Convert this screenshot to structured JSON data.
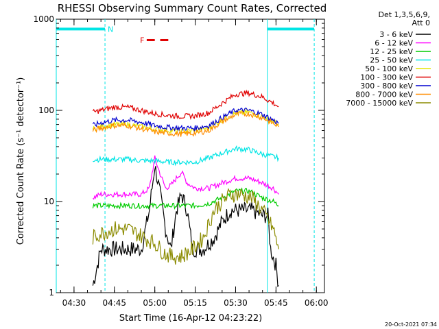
{
  "chart_data": {
    "type": "line",
    "title": "RHESSI Observing Summary Count Rates, Corrected",
    "xlabel": "Start Time (16-Apr-12 04:23:22)",
    "ylabel": "Corrected Count Rate (s⁻¹ detector⁻¹)",
    "y_scale": "log",
    "ylim": [
      1,
      1000
    ],
    "xlim_minutes_after_0400": [
      23.4,
      123.0
    ],
    "x_ticks": [
      {
        "label": "04:30",
        "m": 30
      },
      {
        "label": "04:45",
        "m": 45
      },
      {
        "label": "05:00",
        "m": 60
      },
      {
        "label": "05:15",
        "m": 75
      },
      {
        "label": "05:30",
        "m": 90
      },
      {
        "label": "05:45",
        "m": 105
      },
      {
        "label": "06:00",
        "m": 120
      }
    ],
    "y_ticks": [
      {
        "label": "1",
        "v": 1
      },
      {
        "label": "10",
        "v": 10
      },
      {
        "label": "100",
        "v": 100
      },
      {
        "label": "1000",
        "v": 1000
      }
    ],
    "legend_header": [
      "Det 1,3,5,6,9,",
      "Att 0"
    ],
    "legend_position": "right",
    "series": [
      {
        "name": "3 - 6 keV",
        "color": "#000000",
        "points": [
          [
            37,
            1.2
          ],
          [
            40,
            3
          ],
          [
            45,
            3
          ],
          [
            50,
            3
          ],
          [
            55,
            3
          ],
          [
            58,
            8
          ],
          [
            60,
            25
          ],
          [
            62,
            12
          ],
          [
            64,
            5
          ],
          [
            66,
            3
          ],
          [
            68,
            8
          ],
          [
            70,
            12
          ],
          [
            72,
            8
          ],
          [
            74,
            3
          ],
          [
            78,
            3
          ],
          [
            82,
            4
          ],
          [
            85,
            6
          ],
          [
            88,
            8
          ],
          [
            92,
            8
          ],
          [
            96,
            8
          ],
          [
            100,
            7
          ],
          [
            102,
            7
          ],
          [
            103,
            3
          ],
          [
            105,
            2
          ],
          [
            106,
            1.2
          ]
        ]
      },
      {
        "name": "6 - 12 keV",
        "color": "#ff00ff",
        "points": [
          [
            37,
            11
          ],
          [
            40,
            12
          ],
          [
            45,
            12
          ],
          [
            50,
            12
          ],
          [
            55,
            12
          ],
          [
            58,
            14
          ],
          [
            60,
            30
          ],
          [
            62,
            20
          ],
          [
            64,
            14
          ],
          [
            66,
            15
          ],
          [
            68,
            18
          ],
          [
            70,
            21
          ],
          [
            72,
            16
          ],
          [
            75,
            14
          ],
          [
            80,
            14
          ],
          [
            85,
            16
          ],
          [
            90,
            18
          ],
          [
            95,
            18
          ],
          [
            100,
            16
          ],
          [
            104,
            14
          ],
          [
            106,
            12
          ]
        ]
      },
      {
        "name": "12 - 25 keV",
        "color": "#00cc00",
        "points": [
          [
            37,
            9
          ],
          [
            45,
            9
          ],
          [
            50,
            9
          ],
          [
            55,
            9
          ],
          [
            60,
            9
          ],
          [
            65,
            9
          ],
          [
            70,
            9
          ],
          [
            75,
            9
          ],
          [
            80,
            9.5
          ],
          [
            85,
            11
          ],
          [
            90,
            13
          ],
          [
            95,
            13
          ],
          [
            100,
            11
          ],
          [
            104,
            10
          ],
          [
            106,
            9
          ]
        ]
      },
      {
        "name": "25 - 50 keV",
        "color": "#00e5e5",
        "points": [
          [
            37,
            29
          ],
          [
            45,
            29
          ],
          [
            50,
            29
          ],
          [
            55,
            28
          ],
          [
            60,
            28
          ],
          [
            65,
            27
          ],
          [
            70,
            27
          ],
          [
            75,
            27
          ],
          [
            80,
            30
          ],
          [
            85,
            34
          ],
          [
            90,
            38
          ],
          [
            95,
            37
          ],
          [
            100,
            33
          ],
          [
            104,
            31
          ],
          [
            106,
            30
          ]
        ]
      },
      {
        "name": "50 - 100 keV",
        "color": "#e5e500",
        "points": [
          [
            37,
            62
          ],
          [
            40,
            66
          ],
          [
            45,
            70
          ],
          [
            50,
            70
          ],
          [
            55,
            66
          ],
          [
            60,
            62
          ],
          [
            65,
            60
          ],
          [
            70,
            59
          ],
          [
            75,
            60
          ],
          [
            80,
            64
          ],
          [
            85,
            78
          ],
          [
            90,
            93
          ],
          [
            95,
            95
          ],
          [
            100,
            85
          ],
          [
            104,
            75
          ],
          [
            106,
            70
          ]
        ]
      },
      {
        "name": "100 - 300 keV",
        "color": "#e00000",
        "points": [
          [
            37,
            95
          ],
          [
            40,
            100
          ],
          [
            45,
            108
          ],
          [
            50,
            108
          ],
          [
            55,
            100
          ],
          [
            60,
            92
          ],
          [
            65,
            88
          ],
          [
            70,
            86
          ],
          [
            75,
            87
          ],
          [
            80,
            94
          ],
          [
            85,
            120
          ],
          [
            90,
            150
          ],
          [
            95,
            155
          ],
          [
            100,
            140
          ],
          [
            104,
            120
          ],
          [
            106,
            110
          ]
        ]
      },
      {
        "name": "300 - 800 keV",
        "color": "#0000d0",
        "points": [
          [
            37,
            68
          ],
          [
            40,
            73
          ],
          [
            45,
            78
          ],
          [
            50,
            78
          ],
          [
            55,
            74
          ],
          [
            60,
            68
          ],
          [
            65,
            65
          ],
          [
            70,
            64
          ],
          [
            75,
            64
          ],
          [
            80,
            68
          ],
          [
            85,
            83
          ],
          [
            90,
            100
          ],
          [
            95,
            100
          ],
          [
            100,
            90
          ],
          [
            104,
            78
          ],
          [
            106,
            72
          ]
        ]
      },
      {
        "name": "800 - 7000 keV",
        "color": "#ff8c00",
        "points": [
          [
            37,
            60
          ],
          [
            40,
            64
          ],
          [
            45,
            68
          ],
          [
            50,
            68
          ],
          [
            55,
            63
          ],
          [
            60,
            58
          ],
          [
            65,
            56
          ],
          [
            70,
            55
          ],
          [
            75,
            56
          ],
          [
            80,
            60
          ],
          [
            85,
            75
          ],
          [
            90,
            90
          ],
          [
            95,
            92
          ],
          [
            100,
            83
          ],
          [
            104,
            72
          ],
          [
            106,
            66
          ]
        ]
      },
      {
        "name": "7000 - 15000 keV",
        "color": "#8b8b00",
        "points": [
          [
            37,
            4
          ],
          [
            40,
            4.5
          ],
          [
            45,
            5
          ],
          [
            50,
            5
          ],
          [
            55,
            4.2
          ],
          [
            60,
            3.5
          ],
          [
            63,
            2.8
          ],
          [
            66,
            2.5
          ],
          [
            70,
            2.5
          ],
          [
            74,
            3
          ],
          [
            78,
            4
          ],
          [
            82,
            8
          ],
          [
            85,
            10
          ],
          [
            88,
            12
          ],
          [
            92,
            12
          ],
          [
            96,
            11
          ],
          [
            100,
            8
          ],
          [
            104,
            5
          ],
          [
            106,
            3
          ]
        ]
      }
    ],
    "markers": {
      "day_night": {
        "color": "#00e5e5",
        "level": 780,
        "segments": [
          [
            23.4,
            41.5
          ],
          [
            101.8,
            119.2
          ]
        ],
        "label": "N",
        "label_at": 42.5
      },
      "flare_flag": {
        "color": "#e00000",
        "level": 590,
        "segments": [
          [
            57,
            60
          ],
          [
            62,
            65
          ]
        ],
        "label": "F",
        "label_at": 54.5
      },
      "vertical_lines": [
        {
          "m": 23.4,
          "style": "solid"
        },
        {
          "m": 41.5,
          "style": "dashed"
        },
        {
          "m": 101.8,
          "style": "solid"
        },
        {
          "m": 119.2,
          "style": "dashed"
        }
      ]
    }
  },
  "timestamp": "20-Oct-2021 07:34"
}
